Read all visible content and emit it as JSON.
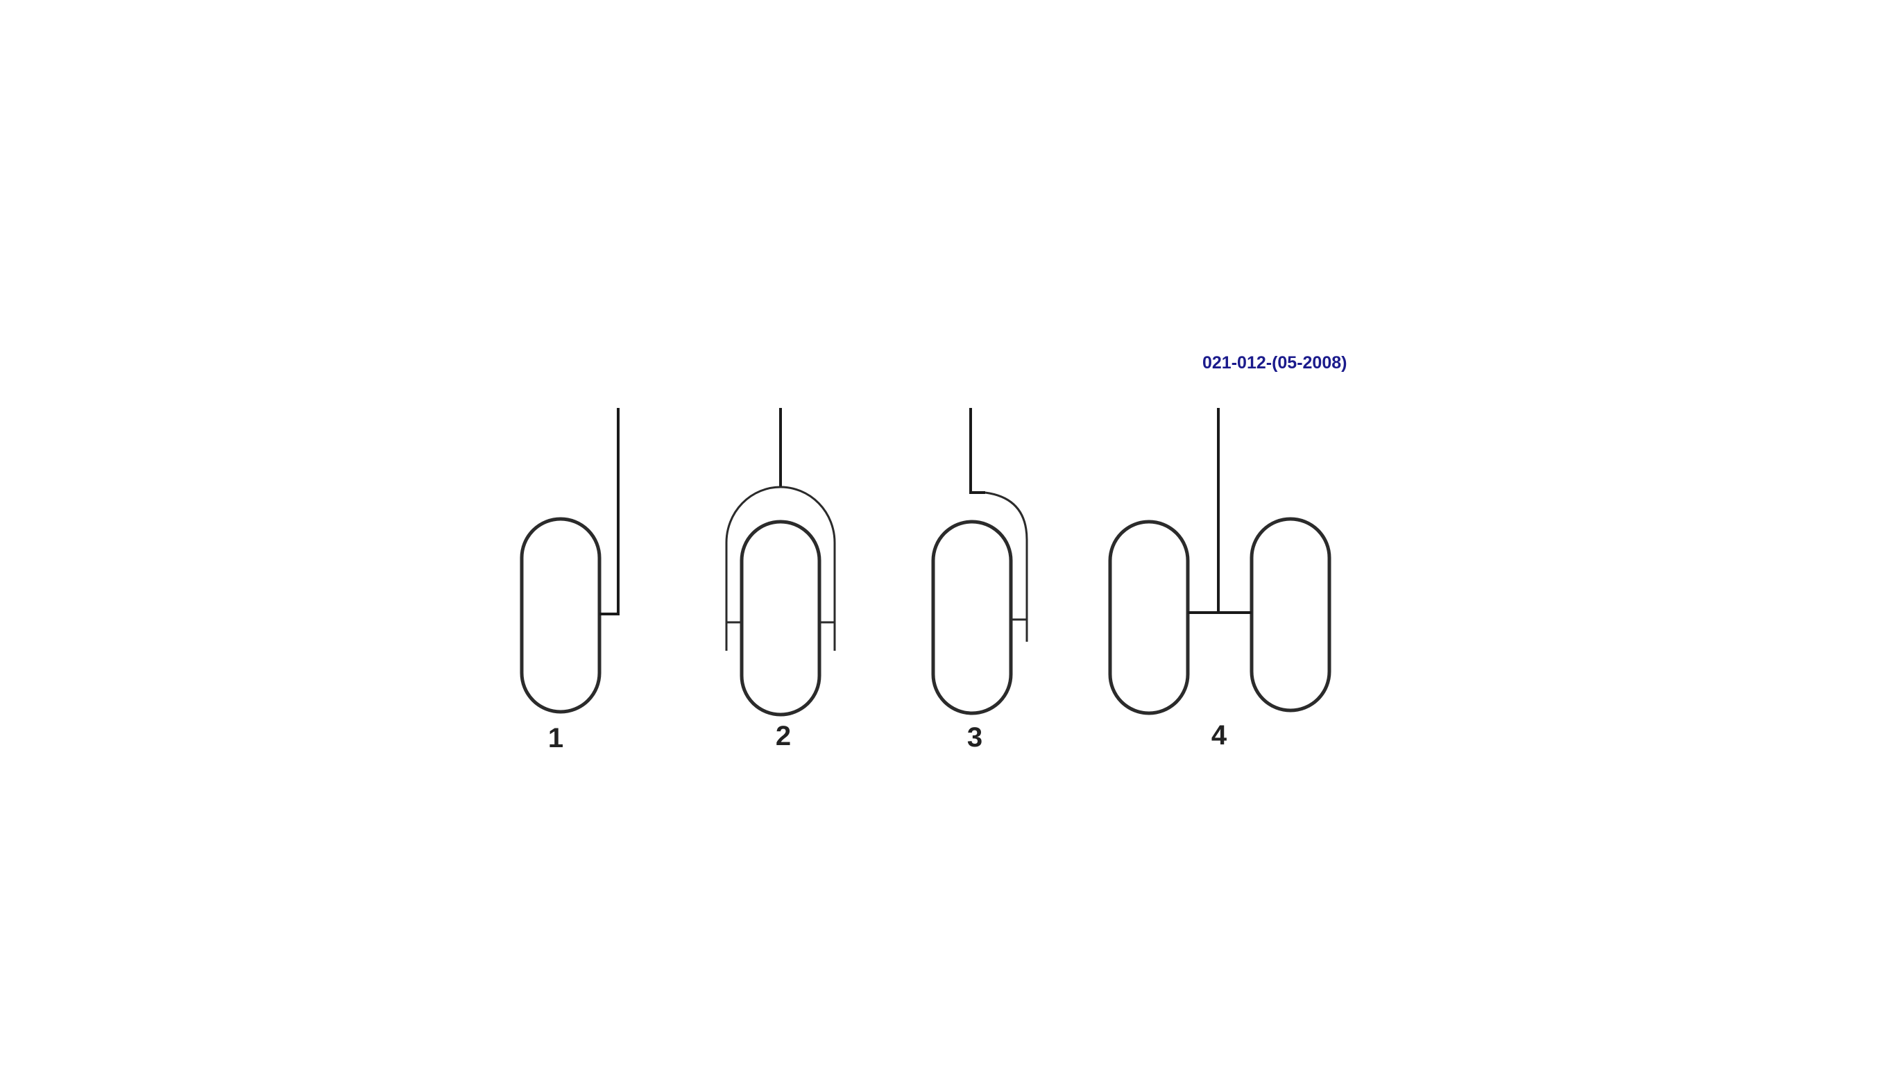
{
  "reference_code": "021-012-(05-2008)",
  "colors": {
    "reference_code": "#1b1b8c",
    "labels": "#222222",
    "lines": "#2b2b2b",
    "background": "#ffffff"
  },
  "configurations": [
    {
      "label": "1"
    },
    {
      "label": "2"
    },
    {
      "label": "3"
    },
    {
      "label": "4"
    }
  ]
}
